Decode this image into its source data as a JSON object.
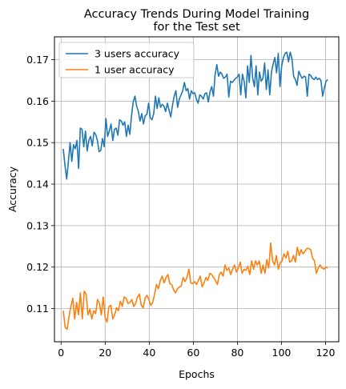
{
  "chart_data": {
    "type": "line",
    "title_lines": [
      "Accuracy Trends During Model Training",
      "for the Test set"
    ],
    "xlabel": "Epochs",
    "ylabel": "Accuracy",
    "xlim": [
      -3,
      126
    ],
    "ylim": [
      0.102,
      0.1755
    ],
    "xticks": [
      0,
      20,
      40,
      60,
      80,
      100,
      120
    ],
    "yticks": [
      0.11,
      0.12,
      0.13,
      0.14,
      0.15,
      0.16,
      0.17
    ],
    "ytick_labels": [
      "0.11",
      "0.12",
      "0.13",
      "0.14",
      "0.15",
      "0.16",
      "0.17"
    ],
    "grid": true,
    "legend_position": "top-left",
    "series": [
      {
        "name": "3 users accuracy",
        "color": "#1f77b4",
        "values": [
          0.1485,
          0.1445,
          0.1412,
          0.1455,
          0.15,
          0.1455,
          0.1495,
          0.1485,
          0.1505,
          0.1438,
          0.1535,
          0.1532,
          0.149,
          0.1528,
          0.148,
          0.1505,
          0.1515,
          0.1492,
          0.1525,
          0.152,
          0.1505,
          0.1478,
          0.1482,
          0.151,
          0.149,
          0.1558,
          0.1515,
          0.1528,
          0.1545,
          0.1505,
          0.1532,
          0.1535,
          0.1518,
          0.1555,
          0.1552,
          0.1542,
          0.155,
          0.1515,
          0.1542,
          0.152,
          0.1565,
          0.1598,
          0.1612,
          0.1588,
          0.1575,
          0.1552,
          0.157,
          0.1545,
          0.1565,
          0.1568,
          0.1595,
          0.156,
          0.1555,
          0.157,
          0.1612,
          0.1582,
          0.1608,
          0.1585,
          0.1592,
          0.1588,
          0.1575,
          0.1595,
          0.1578,
          0.1562,
          0.159,
          0.1612,
          0.1625,
          0.1585,
          0.1605,
          0.1615,
          0.1625,
          0.1645,
          0.1625,
          0.163,
          0.1605,
          0.1625,
          0.1618,
          0.162,
          0.1605,
          0.1595,
          0.1615,
          0.1612,
          0.1605,
          0.1618,
          0.162,
          0.1598,
          0.1622,
          0.1635,
          0.1612,
          0.1665,
          0.1688,
          0.166,
          0.167,
          0.1665,
          0.1655,
          0.1658,
          0.1665,
          0.161,
          0.1648,
          0.1645,
          0.165,
          0.1655,
          0.1658,
          0.1665,
          0.1615,
          0.1665,
          0.1648,
          0.1608,
          0.1685,
          0.1645,
          0.171,
          0.1655,
          0.1635,
          0.1685,
          0.1615,
          0.167,
          0.1648,
          0.1655,
          0.1692,
          0.1628,
          0.1675,
          0.1615,
          0.167,
          0.169,
          0.1705,
          0.1668,
          0.1715,
          0.1635,
          0.1685,
          0.1705,
          0.1715,
          0.1718,
          0.1695,
          0.1718,
          0.1702,
          0.166,
          0.1652,
          0.1638,
          0.1672,
          0.1662,
          0.1655,
          0.166,
          0.1658,
          0.1612,
          0.1665,
          0.1662,
          0.1655,
          0.1652,
          0.1658,
          0.1652,
          0.1655,
          0.165,
          0.1612,
          0.1632,
          0.1648,
          0.1652
        ],
        "x_start": 1,
        "x_end": 121
      },
      {
        "name": "1 user accuracy",
        "color": "#ff7f0e",
        "values": [
          0.1095,
          0.1055,
          0.105,
          0.108,
          0.1105,
          0.1125,
          0.1075,
          0.1115,
          0.1085,
          0.1138,
          0.1075,
          0.1142,
          0.1135,
          0.1085,
          0.1098,
          0.1075,
          0.1095,
          0.1088,
          0.1122,
          0.1112,
          0.1085,
          0.1128,
          0.1078,
          0.1068,
          0.1105,
          0.1108,
          0.1075,
          0.1085,
          0.1102,
          0.1095,
          0.1118,
          0.1105,
          0.1128,
          0.1125,
          0.1112,
          0.1115,
          0.1122,
          0.1105,
          0.1112,
          0.1128,
          0.1135,
          0.1108,
          0.1102,
          0.1125,
          0.1132,
          0.1122,
          0.1108,
          0.1115,
          0.1135,
          0.1158,
          0.1148,
          0.1168,
          0.1178,
          0.1162,
          0.1175,
          0.1182,
          0.116,
          0.1158,
          0.1145,
          0.1138,
          0.1148,
          0.1152,
          0.1155,
          0.1175,
          0.1165,
          0.1175,
          0.1195,
          0.1162,
          0.116,
          0.1165,
          0.1158,
          0.1168,
          0.1178,
          0.1152,
          0.1162,
          0.1175,
          0.1168,
          0.1185,
          0.1182,
          0.1175,
          0.1168,
          0.1158,
          0.1182,
          0.1188,
          0.1178,
          0.1205,
          0.1192,
          0.1198,
          0.1182,
          0.1195,
          0.1205,
          0.1188,
          0.1198,
          0.1212,
          0.1185,
          0.1195,
          0.1192,
          0.1202,
          0.1182,
          0.1215,
          0.1195,
          0.1215,
          0.1205,
          0.1215,
          0.1185,
          0.1205,
          0.1185,
          0.1218,
          0.1198,
          0.1258,
          0.1215,
          0.1205,
          0.1228,
          0.1195,
          0.121,
          0.1215,
          0.1232,
          0.1222,
          0.1238,
          0.1212,
          0.1215,
          0.1228,
          0.1212,
          0.1248,
          0.1228,
          0.1242,
          0.1232,
          0.1238,
          0.1245,
          0.1245,
          0.1242,
          0.1222,
          0.1215,
          0.1185,
          0.1198,
          0.1205,
          0.1198,
          0.1195,
          0.12,
          0.1198
        ],
        "x_start": 1,
        "x_end": 121
      }
    ]
  }
}
